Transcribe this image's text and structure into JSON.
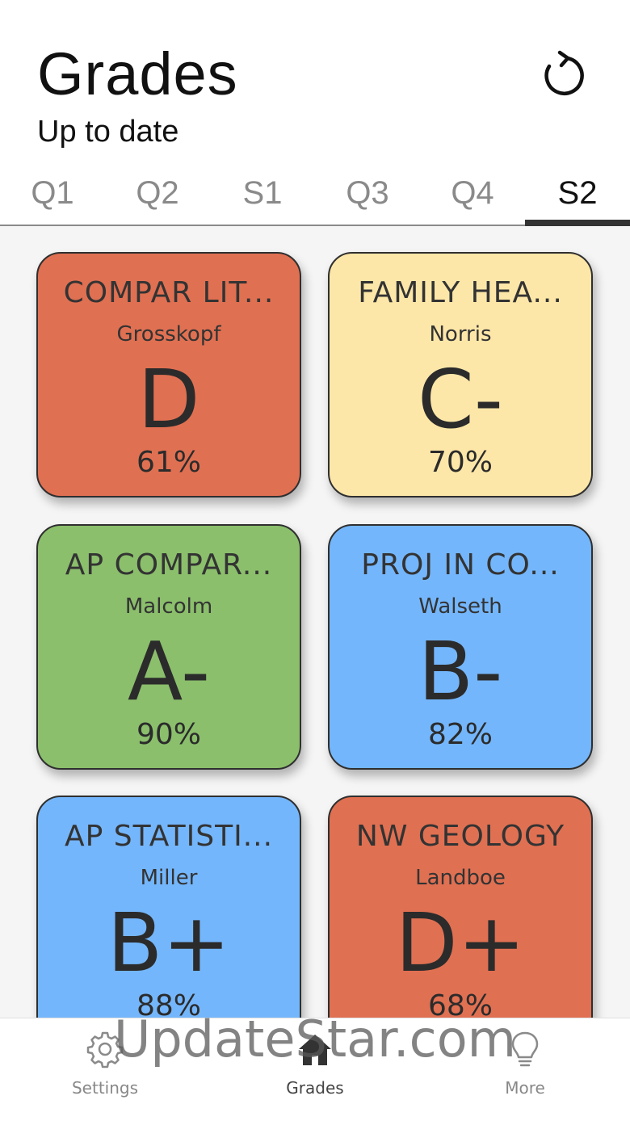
{
  "header": {
    "title": "Grades",
    "subtitle": "Up to date",
    "refresh_icon": "refresh-icon"
  },
  "tabs": [
    {
      "label": "Q1",
      "active": false
    },
    {
      "label": "Q2",
      "active": false
    },
    {
      "label": "S1",
      "active": false
    },
    {
      "label": "Q3",
      "active": false
    },
    {
      "label": "Q4",
      "active": false
    },
    {
      "label": "S2",
      "active": true
    }
  ],
  "courses": [
    {
      "name": "COMPAR LIT...",
      "teacher": "Grosskopf",
      "grade": "D",
      "percent": "61%",
      "color": "#e07052"
    },
    {
      "name": "FAMILY HEA...",
      "teacher": "Norris",
      "grade": "C-",
      "percent": "70%",
      "color": "#fde7a8"
    },
    {
      "name": "AP COMPAR...",
      "teacher": "Malcolm",
      "grade": "A-",
      "percent": "90%",
      "color": "#8bbf6c"
    },
    {
      "name": "PROJ IN CO...",
      "teacher": "Walseth",
      "grade": "B-",
      "percent": "82%",
      "color": "#74b6fb"
    },
    {
      "name": "AP STATISTI...",
      "teacher": "Miller",
      "grade": "B+",
      "percent": "88%",
      "color": "#74b6fb"
    },
    {
      "name": "NW GEOLOGY",
      "teacher": "Landboe",
      "grade": "D+",
      "percent": "68%",
      "color": "#e07052"
    }
  ],
  "bottom_nav": [
    {
      "label": "Settings",
      "icon": "gear-icon",
      "active": false
    },
    {
      "label": "Grades",
      "icon": "home-icon",
      "active": true
    },
    {
      "label": "More",
      "icon": "lightbulb-icon",
      "active": false
    }
  ],
  "watermark": "UpdateStar.com"
}
